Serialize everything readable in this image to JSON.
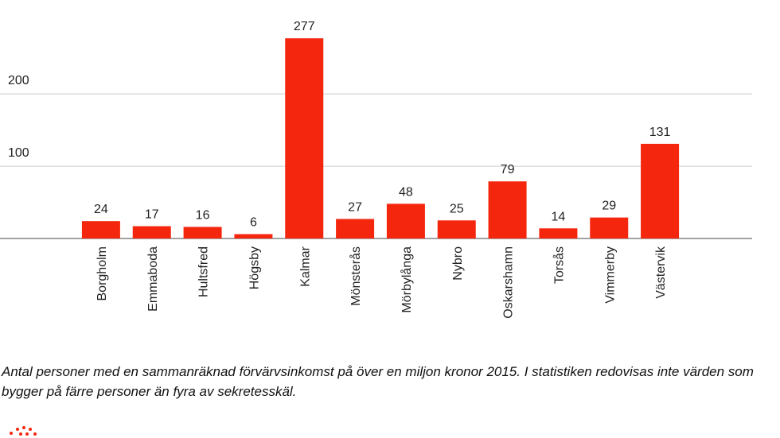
{
  "chart_data": {
    "type": "bar",
    "categories": [
      "Borgholm",
      "Emmaboda",
      "Hultsfred",
      "Högsby",
      "Kalmar",
      "Mönsterås",
      "Mörbylånga",
      "Nybro",
      "Oskarshamn",
      "Torsås",
      "Vimmerby",
      "Västervik"
    ],
    "values": [
      24,
      17,
      16,
      6,
      277,
      27,
      48,
      25,
      79,
      14,
      29,
      131
    ],
    "color": "#f5260e",
    "ylim": [
      0,
      330
    ],
    "yticks": [
      100,
      200
    ],
    "grid": true,
    "caption": "Antal personer med en sammanräknad förvärvsinkomst på över en miljon kronor 2015. I statistiken redovisas inte värden som bygger på färre personer än fyra av sekretesskäl."
  }
}
